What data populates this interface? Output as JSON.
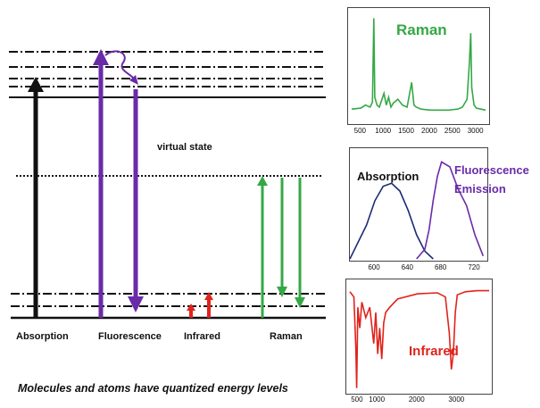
{
  "energy_diagram": {
    "virtual_state_label": "virtual state",
    "process_labels": {
      "absorption": "Absorption",
      "fluorescence": "Fluorescence",
      "infrared": "Infrared",
      "raman": "Raman"
    },
    "caption": "Molecules and atoms have quantized energy levels",
    "colors": {
      "absorption": "#111111",
      "fluorescence": "#6a2ba8",
      "infrared": "#e0231c",
      "raman": "#35a846"
    }
  },
  "raman_panel": {
    "title": "Raman",
    "x_ticks": [
      "500",
      "1000",
      "1500",
      "2000",
      "2500",
      "3000"
    ],
    "color": "#35a846"
  },
  "fluor_panel": {
    "absorption_label": "Absorption",
    "emission_label_line1": "Fluorescence",
    "emission_label_line2": "Emission",
    "x_ticks": [
      "600",
      "640",
      "680",
      "720"
    ],
    "absorption_color": "#1c2a72",
    "emission_color": "#6a2ba8"
  },
  "ir_panel": {
    "title": "Infrared",
    "x_ticks": [
      "500",
      "1000",
      "2000",
      "3000"
    ],
    "color": "#e0231c"
  },
  "chart_data": [
    {
      "type": "line",
      "title": "Raman",
      "x": [
        300,
        500,
        600,
        700,
        750,
        780,
        800,
        850,
        900,
        1000,
        1050,
        1100,
        1150,
        1200,
        1300,
        1400,
        1500,
        1600,
        1650,
        1700,
        1800,
        2000,
        2200,
        2400,
        2600,
        2700,
        2800,
        2850,
        2880,
        2900,
        2950,
        3000,
        3100,
        3200
      ],
      "y": [
        0.08,
        0.09,
        0.12,
        0.1,
        0.15,
        1.0,
        0.2,
        0.12,
        0.1,
        0.24,
        0.12,
        0.2,
        0.1,
        0.14,
        0.18,
        0.12,
        0.1,
        0.35,
        0.12,
        0.1,
        0.08,
        0.07,
        0.07,
        0.07,
        0.08,
        0.1,
        0.18,
        0.55,
        0.85,
        0.3,
        0.12,
        0.09,
        0.08,
        0.07
      ]
    },
    {
      "type": "line",
      "series": [
        {
          "name": "Absorption",
          "x": [
            570,
            590,
            600,
            610,
            620,
            630,
            640,
            650,
            660,
            670
          ],
          "y": [
            0.0,
            0.35,
            0.6,
            0.75,
            0.78,
            0.7,
            0.5,
            0.25,
            0.08,
            0.0
          ]
        },
        {
          "name": "Fluorescence Emission",
          "x": [
            650,
            660,
            665,
            670,
            675,
            680,
            690,
            700,
            710,
            720,
            730
          ],
          "y": [
            0.0,
            0.1,
            0.3,
            0.6,
            0.85,
            1.0,
            0.95,
            0.72,
            0.55,
            0.25,
            0.03
          ]
        }
      ]
    },
    {
      "type": "line",
      "title": "Infrared",
      "x": [
        300,
        400,
        450,
        470,
        500,
        550,
        600,
        700,
        800,
        900,
        950,
        1000,
        1050,
        1100,
        1150,
        1200,
        1300,
        1500,
        2000,
        2500,
        2700,
        2800,
        2850,
        2900,
        2950,
        3000,
        3200,
        3500,
        3800
      ],
      "y": [
        0.95,
        0.9,
        0.4,
        0.02,
        0.8,
        0.6,
        0.85,
        0.7,
        0.8,
        0.45,
        0.75,
        0.35,
        0.6,
        0.3,
        0.65,
        0.75,
        0.8,
        0.88,
        0.93,
        0.94,
        0.9,
        0.55,
        0.2,
        0.35,
        0.75,
        0.92,
        0.95,
        0.96,
        0.96
      ]
    }
  ]
}
